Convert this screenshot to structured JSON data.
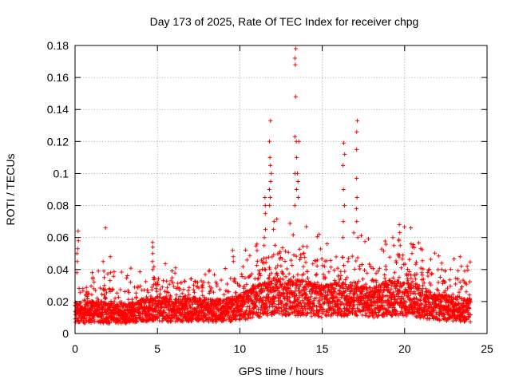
{
  "chart_data": {
    "type": "scatter",
    "title": "Day 173 of 2025, Rate Of TEC Index for receiver chpg",
    "xlabel": "GPS time / hours",
    "ylabel": "ROTI / TECUs",
    "xlim": [
      0,
      25
    ],
    "ylim": [
      0,
      0.18
    ],
    "x_ticks": [
      0,
      5,
      10,
      15,
      20,
      25
    ],
    "x_tick_labels": [
      "0",
      "5",
      "10",
      "15",
      "20",
      "25"
    ],
    "y_ticks": [
      0,
      0.02,
      0.04,
      0.06,
      0.08,
      0.1,
      0.12,
      0.14,
      0.16,
      0.18
    ],
    "y_tick_labels": [
      "0",
      "0.02",
      "0.04",
      "0.06",
      "0.08",
      "0.1",
      "0.12",
      "0.14",
      "0.16",
      "0.18"
    ],
    "grid": true,
    "marker": "+",
    "color": "#ff0000",
    "data_range_hours": [
      0,
      24
    ],
    "series": [
      {
        "name": "ROTI",
        "baseline": [
          [
            0,
            0.014
          ],
          [
            1,
            0.015
          ],
          [
            2,
            0.014
          ],
          [
            3,
            0.014
          ],
          [
            4,
            0.016
          ],
          [
            5,
            0.017
          ],
          [
            6,
            0.016
          ],
          [
            7,
            0.017
          ],
          [
            8,
            0.016
          ],
          [
            9,
            0.016
          ],
          [
            10,
            0.018
          ],
          [
            11,
            0.022
          ],
          [
            12,
            0.026
          ],
          [
            13,
            0.025
          ],
          [
            14,
            0.025
          ],
          [
            15,
            0.022
          ],
          [
            16,
            0.024
          ],
          [
            17,
            0.024
          ],
          [
            18,
            0.021
          ],
          [
            19,
            0.025
          ],
          [
            20,
            0.024
          ],
          [
            21,
            0.021
          ],
          [
            22,
            0.018
          ],
          [
            23,
            0.017
          ],
          [
            24,
            0.016
          ]
        ],
        "bursts": [
          {
            "x": 0.15,
            "y": [
              0.038,
              0.045,
              0.05,
              0.053,
              0.058,
              0.064
            ]
          },
          {
            "x": 1.1,
            "y": [
              0.028,
              0.032,
              0.035,
              0.038
            ]
          },
          {
            "x": 1.75,
            "y": [
              0.03,
              0.035,
              0.039,
              0.045
            ]
          },
          {
            "x": 1.85,
            "y": [
              0.066
            ]
          },
          {
            "x": 2.1,
            "y": [
              0.038,
              0.048
            ]
          },
          {
            "x": 4.7,
            "y": [
              0.035,
              0.04,
              0.045,
              0.05,
              0.054,
              0.057
            ]
          },
          {
            "x": 9.6,
            "y": [
              0.045,
              0.048,
              0.052
            ]
          },
          {
            "x": 11.5,
            "y": [
              0.055,
              0.06,
              0.065,
              0.075,
              0.08,
              0.085
            ]
          },
          {
            "x": 11.85,
            "y": [
              0.08,
              0.085,
              0.09,
              0.095,
              0.1,
              0.105,
              0.11,
              0.12,
              0.133
            ]
          },
          {
            "x": 12.1,
            "y": [
              0.065,
              0.07
            ]
          },
          {
            "x": 13.4,
            "y": [
              0.08,
              0.09,
              0.1,
              0.11,
              0.12,
              0.123,
              0.148,
              0.168,
              0.172,
              0.178
            ]
          },
          {
            "x": 13.55,
            "y": [
              0.085,
              0.095,
              0.1,
              0.12
            ]
          },
          {
            "x": 16.3,
            "y": [
              0.06,
              0.07,
              0.08,
              0.09,
              0.105,
              0.112,
              0.119
            ]
          },
          {
            "x": 17.1,
            "y": [
              0.06,
              0.07,
              0.078,
              0.085,
              0.097,
              0.115,
              0.126,
              0.133
            ]
          },
          {
            "x": 19.3,
            "y": [
              0.055,
              0.06
            ]
          },
          {
            "x": 19.7,
            "y": [
              0.055,
              0.058,
              0.063,
              0.068
            ]
          },
          {
            "x": 20.4,
            "y": [
              0.05,
              0.056,
              0.066
            ]
          },
          {
            "x": 22.3,
            "y": [
              0.04,
              0.044
            ]
          },
          {
            "x": 23.4,
            "y": [
              0.042,
              0.048
            ]
          }
        ]
      }
    ]
  }
}
